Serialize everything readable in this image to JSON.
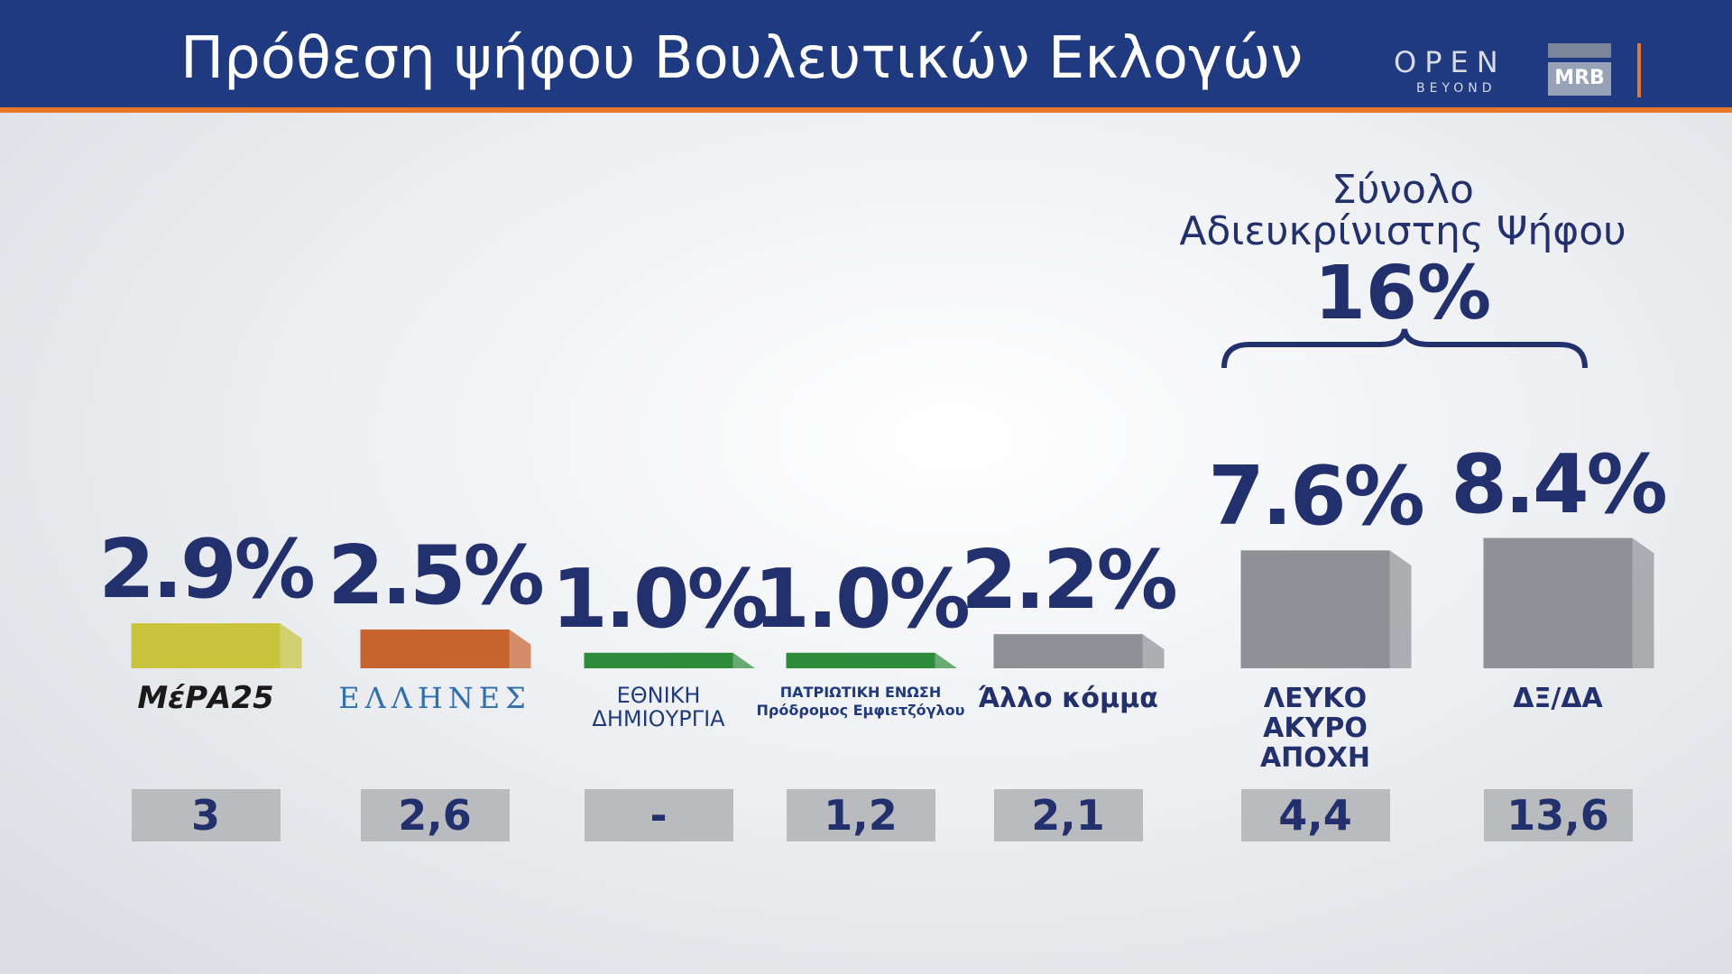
{
  "header": {
    "title": "Πρόθεση ψήφου Βουλευτικών Εκλογών",
    "logo_open": "OPEN",
    "logo_beyond": "BEYOND",
    "logo_mrb": "MRB"
  },
  "chart_data": {
    "type": "bar",
    "categories": [
      "ΜέΡΑ25",
      "ΕΛΛΗΝΕΣ",
      "ΕΘΝΙΚΗ\nΔΗΜΙΟΥΡΓΙΑ",
      "ΠΑΤΡΙΩΤΙΚΗ ΕΝΩΣΗ\nΠρόδρομος Εμφιετζόγλου",
      "Άλλο κόμμα",
      "ΛΕΥΚΟ\nΑΚΥΡΟ\nΑΠΟΧΗ",
      "ΔΞ/ΔΑ"
    ],
    "values": [
      2.9,
      2.5,
      1.0,
      1.0,
      2.2,
      7.6,
      8.4
    ],
    "value_labels": [
      "2.9%",
      "2.5%",
      "1.0%",
      "1.0%",
      "2.2%",
      "7.6%",
      "8.4%"
    ],
    "colors": [
      "#c9c43c",
      "#c8622f",
      "#2e8b3a",
      "#2e8b3a",
      "#8d9095",
      "#8e9196",
      "#8e9196"
    ],
    "previous_labels": [
      "3",
      "2,6",
      "-",
      "1,2",
      "2,1",
      "4,4",
      "13,6"
    ],
    "annotation": {
      "text": "Σύνολο\nΑδιευκρίνιστης Ψήφου",
      "value_label": "16%"
    }
  }
}
